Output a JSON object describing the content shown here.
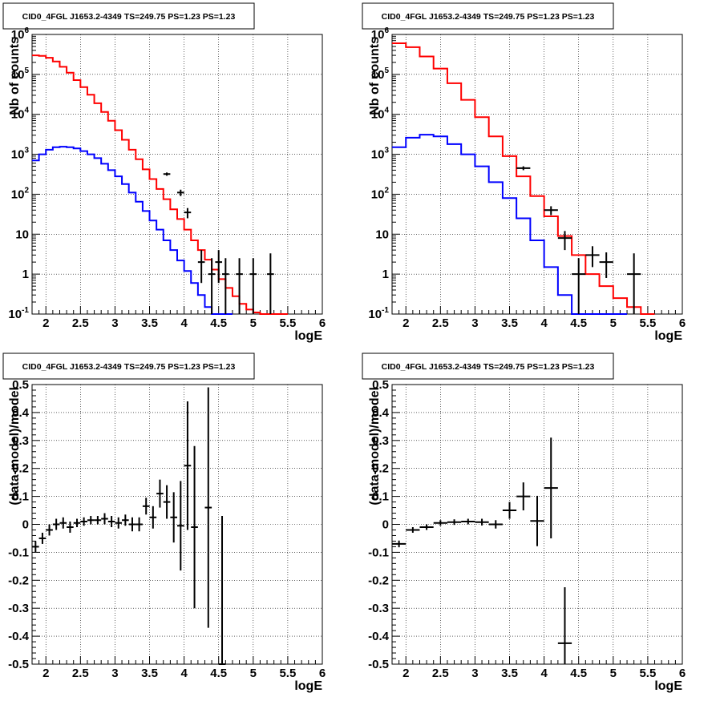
{
  "chart_data": [
    {
      "type": "line",
      "title": "CID0_4FGL J1653.2-4349 TS=249.75 PS=1.23 PS=1.23",
      "xlabel": "logE",
      "ylabel": "Nb of counts",
      "xlim": [
        1.8,
        6
      ],
      "ylim": [
        0.1,
        1000000
      ],
      "yscale": "log",
      "grid": true,
      "xticks": [
        "2",
        "2.5",
        "3",
        "3.5",
        "4",
        "4.5",
        "5",
        "5.5",
        "6"
      ],
      "yticks": [
        "10^-1",
        "1",
        "10",
        "10^2",
        "10^3",
        "10^4",
        "10^5",
        "10^6"
      ],
      "series": [
        {
          "style": "step",
          "color": "#ff0000",
          "bin_width": 0.1,
          "x": [
            1.8,
            1.9,
            2.0,
            2.1,
            2.2,
            2.3,
            2.4,
            2.5,
            2.6,
            2.7,
            2.8,
            2.9,
            3.0,
            3.1,
            3.2,
            3.3,
            3.4,
            3.5,
            3.6,
            3.7,
            3.8,
            3.9,
            4.0,
            4.1,
            4.2,
            4.3,
            4.4,
            4.5,
            4.6,
            4.7,
            4.8,
            4.9,
            5.0,
            5.1,
            5.2,
            5.3,
            5.4
          ],
          "values": [
            300000,
            290000,
            260000,
            210000,
            155000,
            110000,
            72000,
            48000,
            31000,
            19000,
            11500,
            6900,
            4000,
            2300,
            1300,
            750,
            420,
            240,
            135,
            75,
            42,
            24,
            13,
            7,
            4,
            2.3,
            1.3,
            0.75,
            0.45,
            0.28,
            0.18,
            0.13,
            0.11,
            0.1,
            0.1,
            0.1,
            0.1
          ]
        },
        {
          "style": "step",
          "color": "#0000ff",
          "bin_width": 0.1,
          "x": [
            1.8,
            1.9,
            2.0,
            2.1,
            2.2,
            2.3,
            2.4,
            2.5,
            2.6,
            2.7,
            2.8,
            2.9,
            3.0,
            3.1,
            3.2,
            3.3,
            3.4,
            3.5,
            3.6,
            3.7,
            3.8,
            3.9,
            4.0,
            4.1,
            4.2,
            4.3,
            4.4,
            4.5,
            4.6
          ],
          "values": [
            700,
            1000,
            1300,
            1500,
            1550,
            1500,
            1400,
            1200,
            1000,
            800,
            580,
            400,
            280,
            180,
            110,
            65,
            38,
            22,
            13,
            7,
            4,
            2.2,
            1.2,
            0.6,
            0.3,
            0.15,
            0.1,
            0.1,
            0.1
          ]
        },
        {
          "style": "errorbar",
          "color": "#000000",
          "x": [
            3.75,
            3.95,
            4.05,
            4.25,
            4.4,
            4.5,
            4.6,
            4.8,
            5.0,
            5.25
          ],
          "values": [
            320,
            110,
            35,
            2,
            1,
            2,
            1,
            1,
            1,
            1
          ],
          "xerr": 0.05,
          "ylo": [
            290,
            90,
            25,
            0.6,
            0.1,
            0.6,
            0.1,
            0.1,
            0.1,
            0.1
          ],
          "yhi": [
            350,
            130,
            45,
            4,
            2.5,
            4,
            2.5,
            2.5,
            2.5,
            3.3
          ]
        }
      ]
    },
    {
      "type": "line",
      "title": "CID0_4FGL J1653.2-4349 TS=249.75 PS=1.23 PS=1.23",
      "xlabel": "logE",
      "ylabel": "Nb of counts",
      "xlim": [
        1.8,
        6
      ],
      "ylim": [
        0.1,
        1000000
      ],
      "yscale": "log",
      "grid": true,
      "xticks": [
        "2",
        "2.5",
        "3",
        "3.5",
        "4",
        "4.5",
        "5",
        "5.5",
        "6"
      ],
      "yticks": [
        "10^-1",
        "1",
        "10",
        "10^2",
        "10^3",
        "10^4",
        "10^5",
        "10^6"
      ],
      "series": [
        {
          "style": "step",
          "color": "#ff0000",
          "bin_width": 0.2,
          "x": [
            1.8,
            2.0,
            2.2,
            2.4,
            2.6,
            2.8,
            3.0,
            3.2,
            3.4,
            3.6,
            3.8,
            4.0,
            4.2,
            4.4,
            4.6,
            4.8,
            5.0,
            5.2,
            5.4
          ],
          "values": [
            600000,
            480000,
            280000,
            140000,
            60000,
            23000,
            8500,
            2800,
            900,
            280,
            90,
            28,
            9,
            3,
            1,
            0.5,
            0.25,
            0.15,
            0.1
          ]
        },
        {
          "style": "step",
          "color": "#0000ff",
          "bin_width": 0.2,
          "x": [
            1.8,
            2.0,
            2.2,
            2.4,
            2.6,
            2.8,
            3.0,
            3.2,
            3.4,
            3.6,
            3.8,
            4.0,
            4.2,
            4.4,
            4.6,
            4.8,
            5.0
          ],
          "values": [
            1500,
            2600,
            3100,
            2800,
            1800,
            1000,
            500,
            200,
            80,
            25,
            7,
            1.5,
            0.3,
            0.1,
            0.1,
            0.1,
            0.1
          ]
        },
        {
          "style": "errorbar",
          "color": "#000000",
          "x": [
            3.7,
            4.1,
            4.3,
            4.5,
            4.7,
            4.9,
            5.3
          ],
          "values": [
            450,
            40,
            8,
            1,
            3,
            2,
            1
          ],
          "xerr": 0.1,
          "ylo": [
            400,
            30,
            4,
            0.1,
            1.5,
            0.8,
            0.1
          ],
          "yhi": [
            500,
            50,
            12,
            2.5,
            5,
            3.5,
            3.3
          ]
        }
      ]
    },
    {
      "type": "scatter",
      "title": "CID0_4FGL J1653.2-4349 TS=249.75 PS=1.23 PS=1.23",
      "xlabel": "logE",
      "ylabel": "(data-model)/model",
      "xlim": [
        1.8,
        6
      ],
      "ylim": [
        -0.5,
        0.5
      ],
      "grid": true,
      "xticks": [
        "2",
        "2.5",
        "3",
        "3.5",
        "4",
        "4.5",
        "5",
        "5.5",
        "6"
      ],
      "yticks": [
        "-0.5",
        "-0.4",
        "-0.3",
        "-0.2",
        "-0.1",
        "0",
        "0.1",
        "0.2",
        "0.3",
        "0.4",
        "0.5"
      ],
      "series": [
        {
          "style": "errorbar",
          "color": "#000000",
          "xerr": 0.05,
          "x": [
            1.85,
            1.95,
            2.05,
            2.15,
            2.25,
            2.35,
            2.45,
            2.55,
            2.65,
            2.75,
            2.85,
            2.95,
            3.05,
            3.15,
            3.25,
            3.35,
            3.45,
            3.55,
            3.65,
            3.75,
            3.85,
            3.95,
            4.05,
            4.15,
            4.35,
            4.55
          ],
          "values": [
            -0.08,
            -0.05,
            -0.02,
            0.0,
            0.005,
            -0.01,
            0.005,
            0.01,
            0.015,
            0.015,
            0.02,
            0.01,
            0.005,
            0.015,
            0.0,
            0.0,
            0.065,
            0.025,
            0.11,
            0.08,
            0.025,
            -0.005,
            0.21,
            -0.01,
            0.06,
            -0.5
          ],
          "yerr": [
            0.02,
            0.02,
            0.02,
            0.02,
            0.02,
            0.02,
            0.015,
            0.015,
            0.015,
            0.015,
            0.02,
            0.02,
            0.02,
            0.02,
            0.025,
            0.025,
            0.03,
            0.04,
            0.05,
            0.06,
            0.09,
            0.16,
            0.23,
            0.29,
            0.43,
            0.53
          ]
        }
      ]
    },
    {
      "type": "scatter",
      "title": "CID0_4FGL J1653.2-4349 TS=249.75 PS=1.23 PS=1.23",
      "xlabel": "logE",
      "ylabel": "(data-model)/model",
      "xlim": [
        1.8,
        6
      ],
      "ylim": [
        -0.5,
        0.5
      ],
      "grid": true,
      "xticks": [
        "2",
        "2.5",
        "3",
        "3.5",
        "4",
        "4.5",
        "5",
        "5.5",
        "6"
      ],
      "yticks": [
        "-0.5",
        "-0.4",
        "-0.3",
        "-0.2",
        "-0.1",
        "0",
        "0.1",
        "0.2",
        "0.3",
        "0.4",
        "0.5"
      ],
      "series": [
        {
          "style": "errorbar",
          "color": "#000000",
          "xerr": 0.1,
          "x": [
            1.9,
            2.1,
            2.3,
            2.5,
            2.7,
            2.9,
            3.1,
            3.3,
            3.5,
            3.7,
            3.9,
            4.1,
            4.3
          ],
          "values": [
            -0.07,
            -0.02,
            -0.01,
            0.005,
            0.008,
            0.01,
            0.008,
            0.0,
            0.05,
            0.1,
            0.012,
            0.13,
            -0.425
          ],
          "yerr": [
            0.012,
            0.01,
            0.01,
            0.01,
            0.01,
            0.01,
            0.012,
            0.015,
            0.03,
            0.05,
            0.09,
            0.18,
            0.2
          ]
        }
      ]
    }
  ]
}
